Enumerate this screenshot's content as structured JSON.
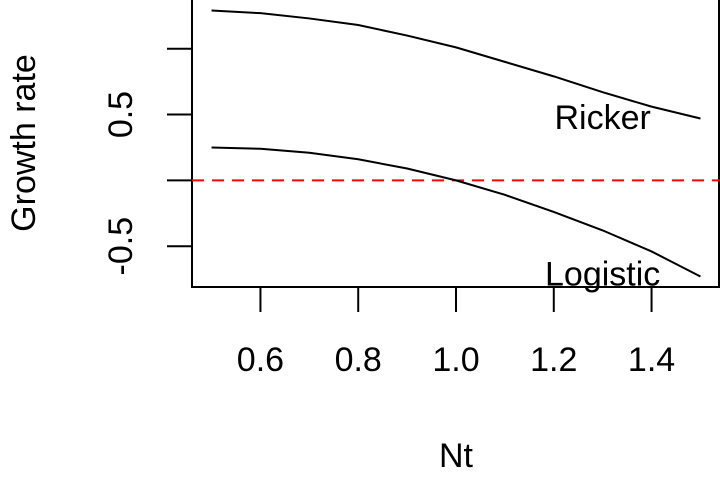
{
  "chart_data": {
    "type": "line",
    "x_label": "Nt",
    "y_label": "Growth rate",
    "x": [
      0.5,
      0.6,
      0.7,
      0.8,
      0.9,
      1.0,
      1.1,
      1.2,
      1.3,
      1.4,
      1.5
    ],
    "series": [
      {
        "name": "Ricker",
        "color": "#000000",
        "values": [
          1.29,
          1.27,
          1.23,
          1.18,
          1.1,
          1.01,
          0.9,
          0.79,
          0.67,
          0.56,
          0.47
        ]
      },
      {
        "name": "Logistic",
        "color": "#000000",
        "values": [
          0.25,
          0.24,
          0.21,
          0.16,
          0.09,
          0.0,
          -0.11,
          -0.24,
          -0.38,
          -0.54,
          -0.73
        ]
      }
    ],
    "annotations": [
      {
        "text": "Ricker",
        "x": 1.3,
        "y": 0.46
      },
      {
        "text": "Logistic",
        "x": 1.3,
        "y": -0.73
      }
    ],
    "hline": {
      "value": 0,
      "color": "#ff0000",
      "dashed": true
    },
    "xlim": [
      0.46,
      1.54
    ],
    "ylim": [
      -0.81,
      1.37
    ],
    "xticks": [
      0.6,
      0.8,
      {
        "value": 1,
        "label": "1.0"
      },
      1.2,
      1.4
    ],
    "yticks": [
      -0.5,
      {
        "value": 0,
        "label": null
      },
      0.5,
      {
        "value": 1,
        "label": null
      }
    ],
    "grid": false
  }
}
